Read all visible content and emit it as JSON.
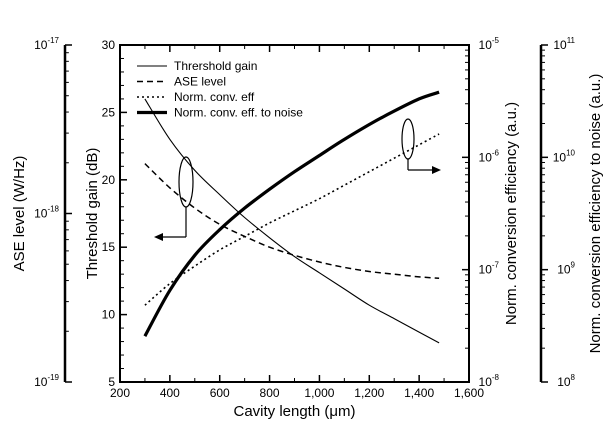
{
  "chart_data": {
    "type": "line",
    "x_axis": {
      "label": "Cavity length (μm)",
      "range": [
        200,
        1600
      ],
      "ticks": [
        "200",
        "400",
        "600",
        "800",
        "1,000",
        "1,200",
        "1,400",
        "1,600"
      ]
    },
    "y_axes": {
      "threshold_gain": {
        "label": "Threshold gain (dB)",
        "range": [
          5,
          30
        ],
        "ticks": [
          "5",
          "10",
          "15",
          "20",
          "25",
          "30"
        ]
      },
      "ase_level": {
        "label": "ASE level (W/Hz)",
        "scale": "log",
        "range": [
          "1e-19",
          "1e-17"
        ],
        "ticks": [
          {
            "base": "10",
            "exp": "-19"
          },
          {
            "base": "10",
            "exp": "-18"
          },
          {
            "base": "10",
            "exp": "-17"
          }
        ]
      },
      "conversion_efficiency": {
        "label": "Norm. conversion efficiency (a.u.)",
        "scale": "log",
        "range": [
          "1e-8",
          "1e-5"
        ],
        "ticks": [
          {
            "base": "10",
            "exp": "-8"
          },
          {
            "base": "10",
            "exp": "-7"
          },
          {
            "base": "10",
            "exp": "-6"
          },
          {
            "base": "10",
            "exp": "-5"
          }
        ]
      },
      "efficiency_to_noise": {
        "label": "Norm. conversion efficiency to noise (a.u.)",
        "scale": "log",
        "range": [
          "1e8",
          "1e11"
        ],
        "ticks": [
          {
            "base": "10",
            "exp": "8"
          },
          {
            "base": "10",
            "exp": "9"
          },
          {
            "base": "10",
            "exp": "10"
          },
          {
            "base": "10",
            "exp": "11"
          }
        ]
      }
    },
    "series": [
      {
        "name": "Thrershold gain",
        "axis": "threshold_gain",
        "style": "solid-thin",
        "x": [
          300,
          400,
          500,
          600,
          700,
          800,
          900,
          1000,
          1100,
          1200,
          1300,
          1400,
          1480
        ],
        "y": [
          26.0,
          23.0,
          20.7,
          18.9,
          17.2,
          15.7,
          14.3,
          13.1,
          11.9,
          10.7,
          9.7,
          8.7,
          7.9
        ]
      },
      {
        "name": "ASE level",
        "axis": "threshold_gain",
        "style": "dashed",
        "x": [
          300,
          400,
          500,
          600,
          700,
          800,
          900,
          1000,
          1100,
          1200,
          1300,
          1400,
          1480
        ],
        "y": [
          21.2,
          19.4,
          17.9,
          16.7,
          15.8,
          15.0,
          14.4,
          13.9,
          13.5,
          13.2,
          13.0,
          12.8,
          12.7
        ]
      },
      {
        "name": "Norm. conv. eff",
        "axis": "threshold_gain",
        "style": "dotted",
        "x": [
          300,
          400,
          500,
          600,
          700,
          800,
          900,
          1000,
          1100,
          1200,
          1300,
          1400,
          1480
        ],
        "y": [
          10.7,
          12.3,
          13.6,
          14.8,
          15.8,
          16.8,
          17.7,
          18.6,
          19.6,
          20.6,
          21.6,
          22.6,
          23.4
        ]
      },
      {
        "name": "Norm. conv. eff. to noise",
        "axis": "threshold_gain",
        "style": "solid-thick",
        "x": [
          300,
          400,
          500,
          600,
          700,
          800,
          900,
          1000,
          1100,
          1200,
          1300,
          1400,
          1480
        ],
        "y": [
          8.4,
          11.8,
          14.4,
          16.3,
          17.9,
          19.3,
          20.6,
          21.8,
          23.0,
          24.1,
          25.1,
          26.0,
          26.5
        ]
      }
    ],
    "legend_position": "top-left",
    "grid": false
  }
}
